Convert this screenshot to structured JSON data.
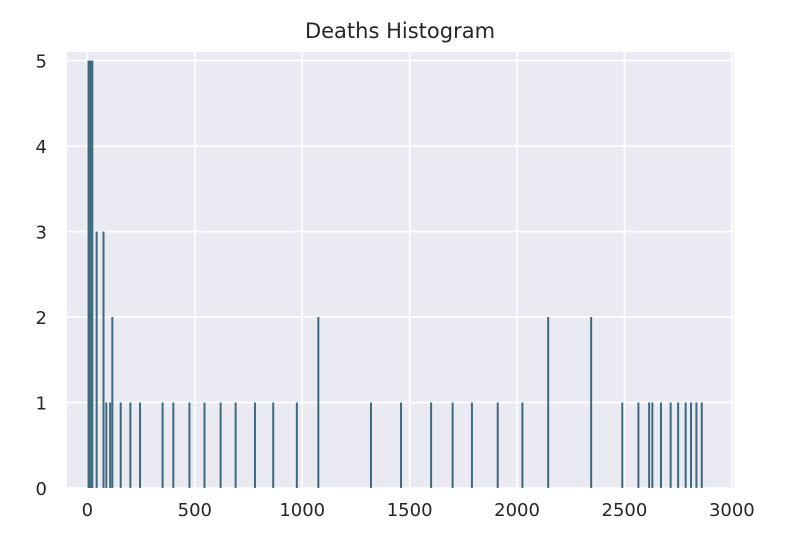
{
  "chart_data": {
    "type": "bar",
    "title": "Deaths Histogram",
    "xlabel": "",
    "ylabel": "",
    "xlim": [
      -95,
      3010
    ],
    "ylim": [
      0,
      5.1
    ],
    "grid": true,
    "x_ticks": [
      0,
      500,
      1000,
      1500,
      2000,
      2500,
      3000
    ],
    "y_ticks": [
      0,
      1,
      2,
      3,
      4,
      5
    ],
    "series": [
      {
        "values": [
          {
            "x": 5,
            "y": 5
          },
          {
            "x": 14,
            "y": 5
          },
          {
            "x": 23,
            "y": 5
          },
          {
            "x": 43,
            "y": 3
          },
          {
            "x": 75,
            "y": 3
          },
          {
            "x": 88,
            "y": 1
          },
          {
            "x": 106,
            "y": 1
          },
          {
            "x": 116,
            "y": 2
          },
          {
            "x": 155,
            "y": 1
          },
          {
            "x": 200,
            "y": 1
          },
          {
            "x": 245,
            "y": 1
          },
          {
            "x": 350,
            "y": 1
          },
          {
            "x": 400,
            "y": 1
          },
          {
            "x": 475,
            "y": 1
          },
          {
            "x": 545,
            "y": 1
          },
          {
            "x": 620,
            "y": 1
          },
          {
            "x": 690,
            "y": 1
          },
          {
            "x": 780,
            "y": 1
          },
          {
            "x": 865,
            "y": 1
          },
          {
            "x": 975,
            "y": 1
          },
          {
            "x": 1075,
            "y": 2
          },
          {
            "x": 1320,
            "y": 1
          },
          {
            "x": 1460,
            "y": 1
          },
          {
            "x": 1600,
            "y": 1
          },
          {
            "x": 1700,
            "y": 1
          },
          {
            "x": 1790,
            "y": 1
          },
          {
            "x": 1910,
            "y": 1
          },
          {
            "x": 2025,
            "y": 1
          },
          {
            "x": 2145,
            "y": 2
          },
          {
            "x": 2345,
            "y": 2
          },
          {
            "x": 2490,
            "y": 1
          },
          {
            "x": 2565,
            "y": 1
          },
          {
            "x": 2615,
            "y": 1
          },
          {
            "x": 2630,
            "y": 1
          },
          {
            "x": 2670,
            "y": 1
          },
          {
            "x": 2715,
            "y": 1
          },
          {
            "x": 2750,
            "y": 1
          },
          {
            "x": 2785,
            "y": 1
          },
          {
            "x": 2810,
            "y": 1
          },
          {
            "x": 2835,
            "y": 1
          },
          {
            "x": 2860,
            "y": 1
          }
        ]
      }
    ],
    "colors": {
      "bar": "#3e6a7e",
      "plot_background": "#eaeaf2",
      "grid": "#ffffff",
      "text": "#262626"
    }
  }
}
